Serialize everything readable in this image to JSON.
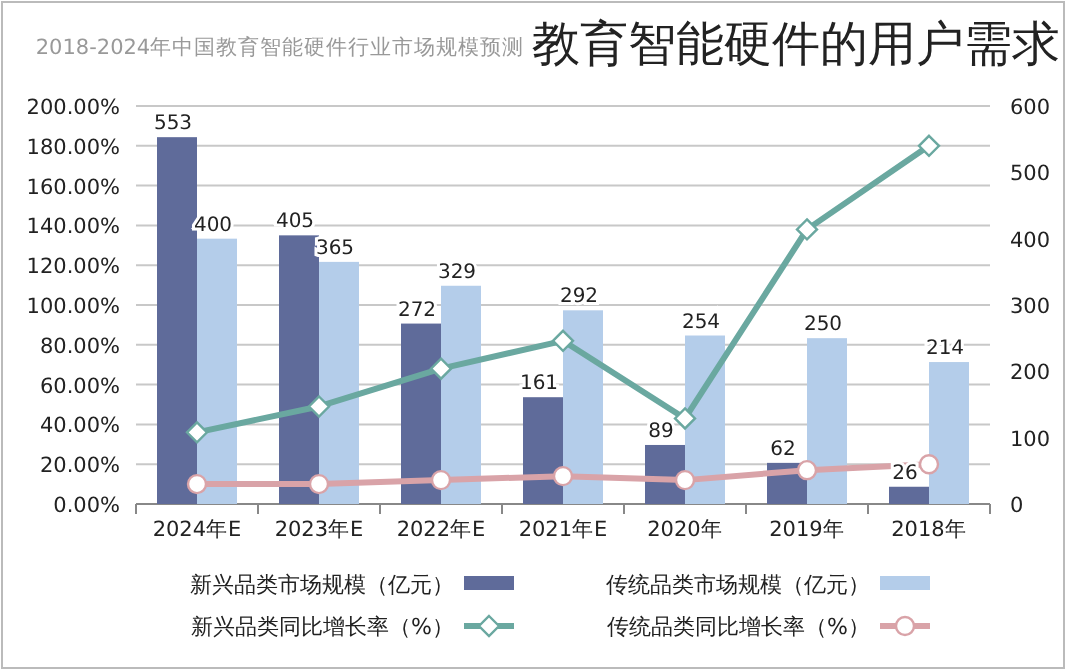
{
  "chart_data": {
    "type": "bar",
    "title": "教育智能硬件的用户需求",
    "subtitle": "2018-2024年中国教育智能硬件行业市场规模预测",
    "categories": [
      "2024年E",
      "2023年E",
      "2022年E",
      "2021年E",
      "2020年",
      "2019年",
      "2018年"
    ],
    "series": [
      {
        "name": "新兴品类市场规模（亿元）",
        "axis": "y2",
        "color": "#5f6b9a",
        "values": [
          553,
          405,
          272,
          161,
          89,
          62,
          26
        ],
        "value_labels": [
          "553",
          "405",
          "272",
          "161",
          "89",
          "62",
          "26"
        ]
      },
      {
        "name": "传统品类市场规模（亿元）",
        "axis": "y2",
        "color": "#b4cdea",
        "values": [
          400,
          365,
          329,
          292,
          254,
          250,
          214
        ],
        "value_labels": [
          "400",
          "365",
          "329",
          "292",
          "254",
          "250",
          "214"
        ]
      },
      {
        "name": "新兴品类同比增长率（%）",
        "type": "line",
        "axis": "y",
        "color": "#6aa8a0",
        "marker": "diamond",
        "values": [
          36,
          49,
          68,
          82,
          43,
          138,
          180
        ]
      },
      {
        "name": "传统品类同比增长率（%）",
        "type": "line",
        "axis": "y",
        "color": "#d9a3a8",
        "marker": "circle",
        "values": [
          10,
          10,
          12,
          14,
          12,
          17,
          20
        ]
      }
    ],
    "ylim": [
      0,
      200
    ],
    "yticks": [
      {
        "value": 0,
        "label": "0.00%"
      },
      {
        "value": 20,
        "label": "20.00%"
      },
      {
        "value": 40,
        "label": "40.00%"
      },
      {
        "value": 60,
        "label": "60.00%"
      },
      {
        "value": 80,
        "label": "80.00%"
      },
      {
        "value": 100,
        "label": "100.00%"
      },
      {
        "value": 120,
        "label": "120.00%"
      },
      {
        "value": 140,
        "label": "140.00%"
      },
      {
        "value": 160,
        "label": "160.00%"
      },
      {
        "value": 180,
        "label": "180.00%"
      },
      {
        "value": 200,
        "label": "200.00%"
      }
    ],
    "y2lim": [
      0,
      600
    ],
    "y2ticks": [
      0,
      100,
      200,
      300,
      400,
      500,
      600
    ],
    "grid": "y",
    "legend": "bottom"
  }
}
